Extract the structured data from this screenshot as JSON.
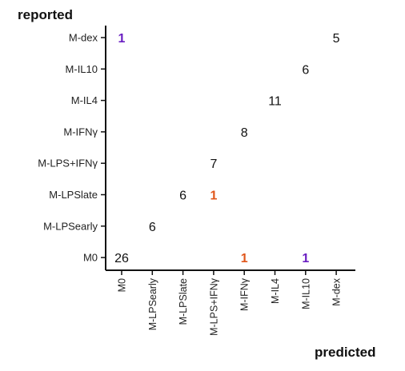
{
  "chart_data": {
    "type": "table",
    "ylabel": "reported",
    "xlabel": "predicted",
    "rows": [
      "M-dex",
      "M-IL10",
      "M-IL4",
      "M-IFNγ",
      "M-LPS+IFNγ",
      "M-LPSlate",
      "M-LPSearly",
      "M0"
    ],
    "columns": [
      "M0",
      "M-LPSearly",
      "M-LPSlate",
      "M-LPS+IFNγ",
      "M-IFNγ",
      "M-IL4",
      "M-IL10",
      "M-dex"
    ],
    "cells": [
      {
        "row": "M-dex",
        "col": "M0",
        "value": 1,
        "color": "#6a1fc2"
      },
      {
        "row": "M-dex",
        "col": "M-dex",
        "value": 5,
        "color": "#111111"
      },
      {
        "row": "M-IL10",
        "col": "M-IL10",
        "value": 6,
        "color": "#111111"
      },
      {
        "row": "M-IL4",
        "col": "M-IL4",
        "value": 11,
        "color": "#111111"
      },
      {
        "row": "M-IFNγ",
        "col": "M-IFNγ",
        "value": 8,
        "color": "#111111"
      },
      {
        "row": "M-LPS+IFNγ",
        "col": "M-LPS+IFNγ",
        "value": 7,
        "color": "#111111"
      },
      {
        "row": "M-LPSlate",
        "col": "M-LPSlate",
        "value": 6,
        "color": "#111111"
      },
      {
        "row": "M-LPSlate",
        "col": "M-LPS+IFNγ",
        "value": 1,
        "color": "#e0561b"
      },
      {
        "row": "M-LPSearly",
        "col": "M-LPSearly",
        "value": 6,
        "color": "#111111"
      },
      {
        "row": "M0",
        "col": "M0",
        "value": 26,
        "color": "#111111"
      },
      {
        "row": "M0",
        "col": "M-IFNγ",
        "value": 1,
        "color": "#e0561b"
      },
      {
        "row": "M0",
        "col": "M-IL10",
        "value": 1,
        "color": "#6a1fc2"
      }
    ]
  },
  "colors": {
    "text": "#222222",
    "axis": "#111111",
    "misclassified_orange": "#e0561b",
    "misclassified_purple": "#6a1fc2"
  }
}
